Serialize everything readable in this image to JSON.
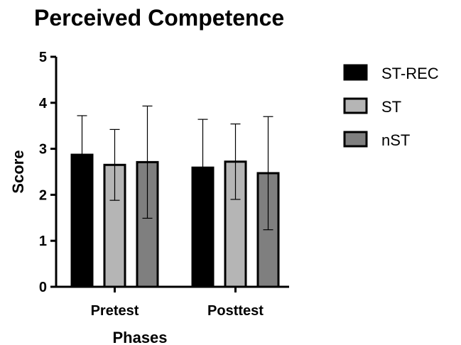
{
  "chart_data": {
    "type": "bar",
    "title": "Perceived Competence",
    "xlabel": "Phases",
    "ylabel": "Score",
    "categories": [
      "Pretest",
      "Posttest"
    ],
    "ylim": [
      0,
      5
    ],
    "yticks": [
      0,
      1,
      2,
      3,
      4,
      5
    ],
    "grid": false,
    "legend_position": "right",
    "error_bars": "upper and lower caps on each bar",
    "series": [
      {
        "name": "ST-REC",
        "color": "#000000",
        "values": [
          2.87,
          2.59
        ],
        "errors": [
          0.85,
          1.05
        ]
      },
      {
        "name": "ST",
        "color": "#b5b5b5",
        "values": [
          2.65,
          2.72
        ],
        "errors": [
          0.77,
          0.82
        ]
      },
      {
        "name": "nST",
        "color": "#7f7f7f",
        "values": [
          2.71,
          2.47
        ],
        "errors": [
          1.22,
          1.23
        ]
      }
    ]
  }
}
